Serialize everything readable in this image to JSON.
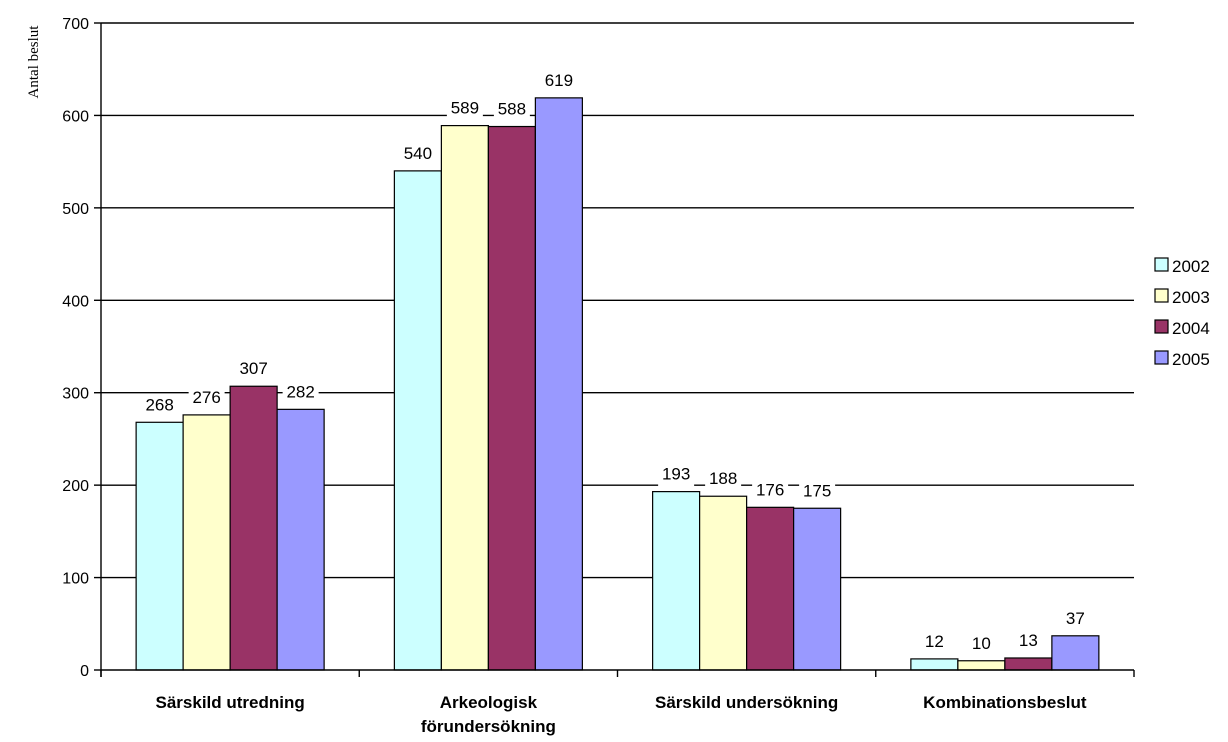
{
  "chart_data": {
    "type": "bar",
    "categories": [
      [
        "Särskild utredning"
      ],
      [
        "Arkeologisk",
        "förundersökning"
      ],
      [
        "Särskild undersökning"
      ],
      [
        "Kombinationsbeslut"
      ]
    ],
    "series": [
      {
        "name": "2002",
        "color": "#ccffff",
        "values": [
          268,
          540,
          193,
          12
        ]
      },
      {
        "name": "2003",
        "color": "#ffffcc",
        "values": [
          276,
          589,
          188,
          10
        ]
      },
      {
        "name": "2004",
        "color": "#993366",
        "values": [
          307,
          588,
          176,
          13
        ]
      },
      {
        "name": "2005",
        "color": "#9999ff",
        "values": [
          282,
          619,
          175,
          37
        ]
      }
    ],
    "ylabel": "Antal beslut",
    "xlabel": "",
    "title": "",
    "ylim": [
      0,
      700
    ],
    "yticks": [
      0,
      100,
      200,
      300,
      400,
      500,
      600,
      700
    ],
    "grid": true,
    "legend_position": "right"
  }
}
